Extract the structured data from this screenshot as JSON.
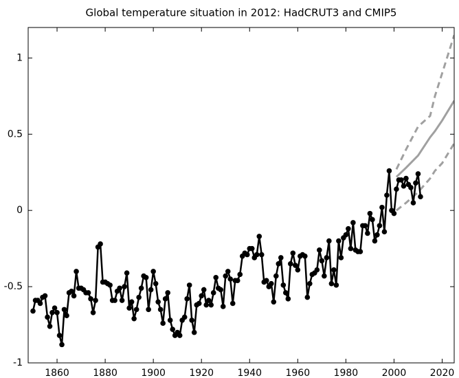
{
  "chart_data": {
    "type": "line",
    "title": "Global temperature situation in 2012: HadCRUT3 and CMIP5",
    "xlim": [
      1848,
      2025
    ],
    "ylim": [
      -1,
      1.2
    ],
    "xticks": [
      1860,
      1880,
      1900,
      1920,
      1940,
      1960,
      1980,
      2000,
      2020
    ],
    "yticks": [
      -1,
      -0.5,
      0,
      0.5,
      1
    ],
    "series": [
      {
        "color": "#000000",
        "style": "solid",
        "markers": true,
        "x": [
          1850,
          1851,
          1852,
          1853,
          1854,
          1855,
          1856,
          1857,
          1858,
          1859,
          1860,
          1861,
          1862,
          1863,
          1864,
          1865,
          1866,
          1867,
          1868,
          1869,
          1870,
          1871,
          1872,
          1873,
          1874,
          1875,
          1876,
          1877,
          1878,
          1879,
          1880,
          1881,
          1882,
          1883,
          1884,
          1885,
          1886,
          1887,
          1888,
          1889,
          1890,
          1891,
          1892,
          1893,
          1894,
          1895,
          1896,
          1897,
          1898,
          1899,
          1900,
          1901,
          1902,
          1903,
          1904,
          1905,
          1906,
          1907,
          1908,
          1909,
          1910,
          1911,
          1912,
          1913,
          1914,
          1915,
          1916,
          1917,
          1918,
          1919,
          1920,
          1921,
          1922,
          1923,
          1924,
          1925,
          1926,
          1927,
          1928,
          1929,
          1930,
          1931,
          1932,
          1933,
          1934,
          1935,
          1936,
          1937,
          1938,
          1939,
          1940,
          1941,
          1942,
          1943,
          1944,
          1945,
          1946,
          1947,
          1948,
          1949,
          1950,
          1951,
          1952,
          1953,
          1954,
          1955,
          1956,
          1957,
          1958,
          1959,
          1960,
          1961,
          1962,
          1963,
          1964,
          1965,
          1966,
          1967,
          1968,
          1969,
          1970,
          1971,
          1972,
          1973,
          1974,
          1975,
          1976,
          1977,
          1978,
          1979,
          1980,
          1981,
          1982,
          1983,
          1984,
          1985,
          1986,
          1987,
          1988,
          1989,
          1990,
          1991,
          1992,
          1993,
          1994,
          1995,
          1996,
          1997,
          1998,
          1999,
          2000,
          2001,
          2002,
          2003,
          2004,
          2005,
          2006,
          2007,
          2008,
          2009,
          2010,
          2011
        ],
        "values": [
          -0.66,
          -0.59,
          -0.59,
          -0.61,
          -0.57,
          -0.56,
          -0.7,
          -0.76,
          -0.67,
          -0.64,
          -0.67,
          -0.82,
          -0.88,
          -0.65,
          -0.69,
          -0.54,
          -0.53,
          -0.56,
          -0.4,
          -0.51,
          -0.51,
          -0.52,
          -0.54,
          -0.54,
          -0.58,
          -0.67,
          -0.59,
          -0.24,
          -0.22,
          -0.47,
          -0.47,
          -0.48,
          -0.49,
          -0.59,
          -0.59,
          -0.53,
          -0.51,
          -0.59,
          -0.5,
          -0.41,
          -0.64,
          -0.6,
          -0.71,
          -0.65,
          -0.57,
          -0.51,
          -0.43,
          -0.44,
          -0.65,
          -0.52,
          -0.4,
          -0.48,
          -0.6,
          -0.65,
          -0.74,
          -0.58,
          -0.54,
          -0.72,
          -0.78,
          -0.82,
          -0.8,
          -0.82,
          -0.72,
          -0.7,
          -0.58,
          -0.49,
          -0.72,
          -0.8,
          -0.62,
          -0.61,
          -0.56,
          -0.52,
          -0.62,
          -0.59,
          -0.62,
          -0.54,
          -0.44,
          -0.51,
          -0.52,
          -0.63,
          -0.43,
          -0.4,
          -0.45,
          -0.61,
          -0.46,
          -0.46,
          -0.42,
          -0.3,
          -0.28,
          -0.29,
          -0.25,
          -0.25,
          -0.31,
          -0.29,
          -0.17,
          -0.29,
          -0.47,
          -0.46,
          -0.5,
          -0.48,
          -0.6,
          -0.43,
          -0.35,
          -0.31,
          -0.49,
          -0.54,
          -0.58,
          -0.35,
          -0.28,
          -0.36,
          -0.39,
          -0.3,
          -0.29,
          -0.3,
          -0.57,
          -0.48,
          -0.42,
          -0.41,
          -0.39,
          -0.26,
          -0.33,
          -0.43,
          -0.31,
          -0.2,
          -0.48,
          -0.39,
          -0.49,
          -0.2,
          -0.31,
          -0.18,
          -0.16,
          -0.12,
          -0.25,
          -0.08,
          -0.26,
          -0.27,
          -0.27,
          -0.1,
          -0.1,
          -0.15,
          -0.02,
          -0.06,
          -0.2,
          -0.16,
          -0.1,
          0.02,
          -0.14,
          0.1,
          0.26,
          0.0,
          -0.02,
          0.14,
          0.2,
          0.2,
          0.16,
          0.21,
          0.17,
          0.15,
          0.05,
          0.18,
          0.24,
          0.09
        ]
      },
      {
        "color": "#a0a0a0",
        "style": "solid",
        "markers": false,
        "x": [
          2001,
          2005,
          2010,
          2015,
          2017,
          2020,
          2025
        ],
        "values": [
          0.22,
          0.28,
          0.36,
          0.48,
          0.52,
          0.59,
          0.72
        ]
      },
      {
        "color": "#a0a0a0",
        "style": "dashed",
        "markers": false,
        "x": [
          2001,
          2005,
          2010,
          2015,
          2017,
          2020,
          2025
        ],
        "values": [
          0.27,
          0.4,
          0.55,
          0.62,
          0.75,
          0.9,
          1.15
        ]
      },
      {
        "color": "#a0a0a0",
        "style": "dashed",
        "markers": false,
        "x": [
          2001,
          2005,
          2010,
          2015,
          2017,
          2020,
          2025
        ],
        "values": [
          0.0,
          0.05,
          0.12,
          0.21,
          0.26,
          0.31,
          0.44
        ]
      }
    ]
  }
}
